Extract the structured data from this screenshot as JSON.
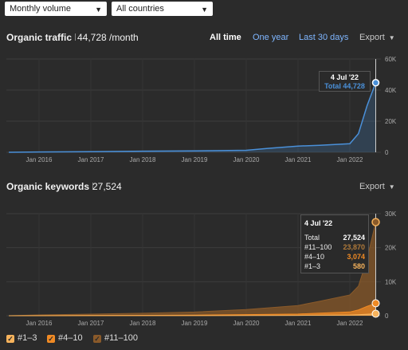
{
  "filters": {
    "volume": "Monthly volume",
    "country": "All countries"
  },
  "traffic": {
    "title": "Organic traffic",
    "value": "44,728 /month",
    "tabs": [
      "All time",
      "One year",
      "Last 30 days"
    ],
    "export": "Export",
    "tooltip": {
      "date": "4 Jul '22",
      "label": "Total 44,728"
    }
  },
  "keywords": {
    "title": "Organic keywords",
    "value": "27,524",
    "export": "Export",
    "tooltip": {
      "date": "4 Jul '22",
      "rows": [
        {
          "label": "Total",
          "value": "27,524",
          "color": "#ffffff"
        },
        {
          "label": "#11–100",
          "value": "23,870",
          "color": "#b07a3a"
        },
        {
          "label": "#4–10",
          "value": "3,074",
          "color": "#f08a24"
        },
        {
          "label": "#1–3",
          "value": "580",
          "color": "#f7b35c"
        }
      ]
    }
  },
  "legend": [
    "#1–3",
    "#4–10",
    "#11–100"
  ],
  "colors": {
    "traffic": "#4a90d9",
    "k11": "#8a5a2a",
    "k4": "#f08a24",
    "k1": "#f7b35c"
  },
  "chart_data": [
    {
      "type": "area",
      "title": "Organic traffic",
      "x": [
        "Jun 2015",
        "Jan 2016",
        "Jan 2017",
        "Jan 2018",
        "Jan 2019",
        "Jan 2020",
        "Jun 2020",
        "Jan 2021",
        "Jun 2021",
        "Jan 2022",
        "Mar 2022",
        "May 2022",
        "Jul 2022"
      ],
      "series": [
        {
          "values": [
            0,
            200,
            400,
            700,
            900,
            1300,
            2500,
            4000,
            4500,
            5500,
            12000,
            30000,
            44728
          ]
        }
      ],
      "xticks": [
        "Jan 2016",
        "Jan 2017",
        "Jan 2018",
        "Jan 2019",
        "Jan 2020",
        "Jan 2021",
        "Jan 2022"
      ],
      "yticks": [
        "0",
        "20K",
        "40K",
        "60K"
      ],
      "ylim": [
        0,
        60000
      ]
    },
    {
      "type": "area",
      "title": "Organic keywords",
      "x": [
        "Jun 2015",
        "Jan 2016",
        "Jan 2017",
        "Jan 2018",
        "Jan 2019",
        "Jan 2020",
        "Jan 2021",
        "Jun 2021",
        "Jan 2022",
        "Mar 2022",
        "May 2022",
        "Jul 2022"
      ],
      "series": [
        {
          "name": "#1–3",
          "values": [
            0,
            10,
            20,
            30,
            40,
            60,
            100,
            150,
            200,
            300,
            450,
            580
          ]
        },
        {
          "name": "#4–10",
          "values": [
            0,
            30,
            60,
            90,
            150,
            250,
            400,
            600,
            900,
            1400,
            2300,
            3074
          ]
        },
        {
          "name": "#11–100",
          "values": [
            0,
            200,
            400,
            600,
            900,
            1500,
            2500,
            3500,
            5000,
            7000,
            14000,
            23870
          ]
        }
      ],
      "xticks": [
        "Jan 2016",
        "Jan 2017",
        "Jan 2018",
        "Jan 2019",
        "Jan 2020",
        "Jan 2021",
        "Jan 2022"
      ],
      "yticks": [
        "0",
        "10K",
        "20K",
        "30K"
      ],
      "ylim": [
        0,
        30000
      ]
    }
  ]
}
